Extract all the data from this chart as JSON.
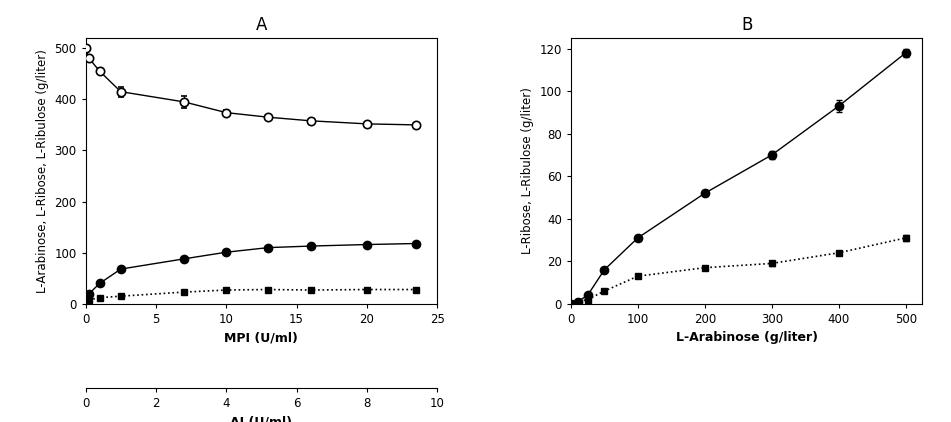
{
  "panel_A": {
    "title": "A",
    "xlabel_mpi": "MPI (U/ml)",
    "xlabel_ai": "AI (U/ml)",
    "ylabel": "L-Arabinose, L-Ribose, L-Ribulose (g/liter)",
    "xlim_mpi": [
      0,
      25
    ],
    "xlim_ai": [
      0,
      10
    ],
    "ylim": [
      0,
      520
    ],
    "yticks": [
      0,
      100,
      200,
      300,
      400,
      500
    ],
    "xticks_mpi": [
      0,
      5,
      10,
      15,
      20,
      25
    ],
    "xticks_ai": [
      0,
      2,
      4,
      6,
      8,
      10
    ],
    "arabinose_x": [
      0,
      0.25,
      1.0,
      2.5,
      7.0,
      10.0,
      13.0,
      16.0,
      20.0,
      23.5
    ],
    "arabinose_y": [
      500,
      480,
      455,
      415,
      395,
      374,
      365,
      358,
      352,
      350
    ],
    "arabinose_yerr": [
      0,
      5,
      6,
      10,
      12,
      6,
      5,
      4,
      4,
      4
    ],
    "ribose_x": [
      0,
      0.25,
      1.0,
      2.5,
      7.0,
      10.0,
      13.0,
      16.0,
      20.0,
      23.5
    ],
    "ribose_y": [
      5,
      20,
      40,
      68,
      88,
      101,
      110,
      113,
      116,
      118
    ],
    "ribose_yerr": [
      0,
      2,
      3,
      3,
      3,
      2,
      2,
      2,
      2,
      2
    ],
    "ribulose_x": [
      0,
      0.25,
      1.0,
      2.5,
      7.0,
      10.0,
      13.0,
      16.0,
      20.0,
      23.5
    ],
    "ribulose_y": [
      2,
      8,
      12,
      15,
      23,
      27,
      28,
      27,
      28,
      28
    ],
    "ribulose_yerr": [
      0,
      1,
      1,
      1,
      1,
      1,
      1,
      1,
      1,
      1
    ]
  },
  "panel_B": {
    "title": "B",
    "xlabel": "L-Arabinose (g/liter)",
    "ylabel": "L-Ribose, L-Ribulose (g/liter)",
    "xlim": [
      0,
      525
    ],
    "ylim": [
      0,
      125
    ],
    "yticks": [
      0,
      20,
      40,
      60,
      80,
      100,
      120
    ],
    "xticks": [
      0,
      100,
      200,
      300,
      400,
      500
    ],
    "ribose_x": [
      0,
      10,
      25,
      50,
      100,
      200,
      300,
      400,
      500
    ],
    "ribose_y": [
      0,
      1,
      4,
      16,
      31,
      52,
      70,
      93,
      118
    ],
    "ribose_yerr": [
      0,
      0.5,
      0.5,
      1,
      1.5,
      1.5,
      2,
      3,
      2
    ],
    "ribulose_x": [
      0,
      10,
      25,
      50,
      100,
      200,
      300,
      400,
      500
    ],
    "ribulose_y": [
      0,
      1,
      2,
      6,
      13,
      17,
      19,
      24,
      31
    ],
    "ribulose_yerr": [
      0,
      0.3,
      0.3,
      0.5,
      1,
      1,
      1,
      1,
      1.5
    ]
  },
  "marker_color": "#000000",
  "fontsize_label": 9,
  "fontsize_title": 12,
  "fontsize_tick": 8.5
}
